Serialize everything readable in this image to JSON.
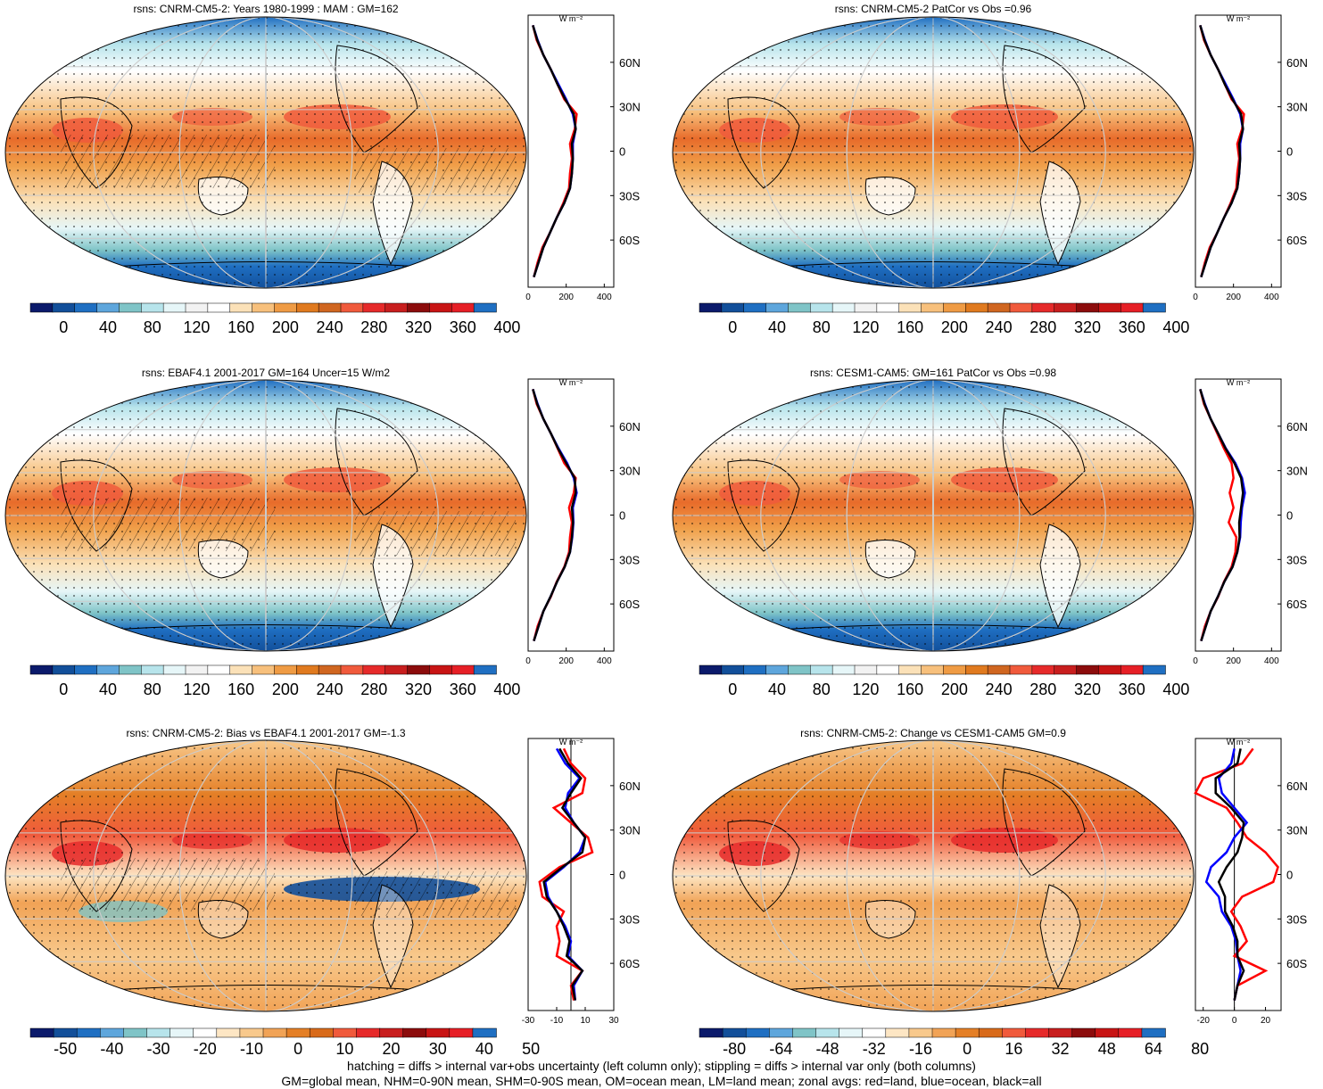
{
  "palette": {
    "abs": [
      "#0b1a6b",
      "#124f9a",
      "#1f6fc2",
      "#5ea6dc",
      "#7fc4c7",
      "#b7e4eb",
      "#e6f6f8",
      "#f2f2f2",
      "#ffffff",
      "#fbe1b8",
      "#f7c07c",
      "#ef9b44",
      "#e07a1f",
      "#d06620",
      "#f05a3c",
      "#e62a2a",
      "#c81e1e",
      "#8c0c0c",
      "#c81414",
      "#e61f26",
      "#1f6fc2"
    ],
    "diff": [
      "#0b1a6b",
      "#124f9a",
      "#1f6fc2",
      "#5ea6dc",
      "#7fc4c7",
      "#b7e4eb",
      "#e6f6f8",
      "#ffffff",
      "#fde6c4",
      "#f8c98c",
      "#f1a356",
      "#e47f26",
      "#d86a1a",
      "#f05a3c",
      "#e62a2a",
      "#c81e1e",
      "#8c0c0c",
      "#c81414",
      "#e61f26",
      "#1f6fc2"
    ]
  },
  "panels": [
    {
      "title": "rsns: CNRM-CM5-2: Years 1980-1999 : MAM : GM=162",
      "colorbar_ticks": [
        "0",
        "40",
        "80",
        "120",
        "160",
        "200",
        "240",
        "280",
        "320",
        "360",
        "400"
      ],
      "zonal_xticks": [
        "0",
        "200",
        "400"
      ],
      "zonal_unit": "W m⁻²"
    },
    {
      "title": "rsns: CNRM-CM5-2 PatCor vs Obs =0.96",
      "colorbar_ticks": [
        "0",
        "40",
        "80",
        "120",
        "160",
        "200",
        "240",
        "280",
        "320",
        "360",
        "400"
      ],
      "zonal_xticks": [
        "0",
        "200",
        "400"
      ],
      "zonal_unit": "W m⁻²"
    },
    {
      "title": "rsns: EBAF4.1 2001-2017 GM=164 Uncer=15 W/m2",
      "colorbar_ticks": [
        "0",
        "40",
        "80",
        "120",
        "160",
        "200",
        "240",
        "280",
        "320",
        "360",
        "400"
      ],
      "zonal_xticks": [
        "0",
        "200",
        "400"
      ],
      "zonal_unit": "W m⁻²"
    },
    {
      "title": "rsns: CESM1-CAM5: GM=161 PatCor vs Obs =0.98",
      "colorbar_ticks": [
        "0",
        "40",
        "80",
        "120",
        "160",
        "200",
        "240",
        "280",
        "320",
        "360",
        "400"
      ],
      "zonal_xticks": [
        "0",
        "200",
        "400"
      ],
      "zonal_unit": "W m⁻²"
    },
    {
      "title": "rsns: CNRM-CM5-2: Bias vs EBAF4.1 2001-2017 GM=-1.3",
      "colorbar_ticks": [
        "-50",
        "-40",
        "-30",
        "-20",
        "-10",
        "0",
        "10",
        "20",
        "30",
        "40",
        "50"
      ],
      "zonal_xticks": [
        "-30",
        "-10",
        "10",
        "30"
      ],
      "zonal_unit": "W m⁻²"
    },
    {
      "title": "rsns: CNRM-CM5-2: Change vs CESM1-CAM5 GM=0.9",
      "colorbar_ticks": [
        "-80",
        "-64",
        "-48",
        "-32",
        "-16",
        "0",
        "16",
        "32",
        "48",
        "64",
        "80"
      ],
      "zonal_xticks": [
        "-20",
        "0",
        "20"
      ],
      "zonal_unit": "W m⁻²"
    }
  ],
  "lat_ticks": [
    "60N",
    "30N",
    "0",
    "30S",
    "60S"
  ],
  "footer": {
    "line1": "hatching = diffs > internal var+obs uncertainty (left column only); stippling = diffs > internal var only (both columns)",
    "line2": "GM=global mean, NHM=0-90N mean, SHM=0-90S mean, OM=ocean mean, LM=land mean; zonal avgs: red=land, blue=ocean, black=all"
  },
  "chart_data": [
    {
      "type": "heatmap",
      "title": "rsns: CNRM-CM5-2: Years 1980-1999 : MAM : GM=162",
      "zlim": [
        0,
        400
      ],
      "zonal": {
        "lat": [
          -85,
          -75,
          -65,
          -55,
          -45,
          -35,
          -25,
          -15,
          -5,
          5,
          15,
          25,
          35,
          45,
          55,
          65,
          75,
          85
        ],
        "land": [
          30,
          50,
          75,
          115,
          150,
          185,
          215,
          220,
          230,
          220,
          245,
          255,
          190,
          155,
          120,
          80,
          45,
          25
        ],
        "ocean": [
          30,
          55,
          80,
          115,
          150,
          190,
          220,
          230,
          235,
          235,
          250,
          235,
          200,
          160,
          120,
          80,
          50,
          25
        ],
        "all": [
          30,
          55,
          80,
          115,
          150,
          190,
          220,
          230,
          235,
          230,
          250,
          240,
          195,
          155,
          120,
          80,
          48,
          25
        ]
      }
    },
    {
      "type": "heatmap",
      "title": "rsns: CNRM-CM5-2 PatCor vs Obs =0.96",
      "zlim": [
        0,
        400
      ],
      "zonal": {
        "lat": [
          -85,
          -75,
          -65,
          -55,
          -45,
          -35,
          -25,
          -15,
          -5,
          5,
          15,
          25,
          35,
          45,
          55,
          65,
          75,
          85
        ],
        "land": [
          30,
          50,
          75,
          115,
          150,
          185,
          215,
          220,
          230,
          220,
          245,
          255,
          190,
          155,
          120,
          80,
          45,
          25
        ],
        "ocean": [
          30,
          55,
          80,
          115,
          150,
          190,
          220,
          230,
          235,
          235,
          250,
          235,
          200,
          160,
          120,
          80,
          50,
          25
        ],
        "all": [
          30,
          55,
          80,
          115,
          150,
          190,
          220,
          230,
          235,
          230,
          250,
          240,
          195,
          155,
          120,
          80,
          48,
          25
        ]
      }
    },
    {
      "type": "heatmap",
      "title": "rsns: EBAF4.1 2001-2017 GM=164 Uncer=15 W/m2",
      "zlim": [
        0,
        400
      ],
      "zonal": {
        "lat": [
          -85,
          -75,
          -65,
          -55,
          -45,
          -35,
          -25,
          -15,
          -5,
          5,
          15,
          25,
          35,
          45,
          55,
          65,
          75,
          85
        ],
        "land": [
          30,
          50,
          80,
          120,
          150,
          190,
          215,
          220,
          230,
          215,
          240,
          250,
          190,
          155,
          120,
          80,
          45,
          25
        ],
        "ocean": [
          30,
          55,
          80,
          118,
          152,
          192,
          220,
          232,
          238,
          235,
          255,
          240,
          205,
          160,
          120,
          80,
          50,
          25
        ],
        "all": [
          30,
          55,
          80,
          118,
          152,
          192,
          220,
          230,
          236,
          230,
          250,
          245,
          200,
          157,
          120,
          80,
          48,
          25
        ]
      }
    },
    {
      "type": "heatmap",
      "title": "rsns: CESM1-CAM5: GM=161 PatCor vs Obs =0.98",
      "zlim": [
        0,
        400
      ],
      "zonal": {
        "lat": [
          -85,
          -75,
          -65,
          -55,
          -45,
          -35,
          -25,
          -15,
          -5,
          5,
          15,
          25,
          35,
          45,
          55,
          65,
          75,
          85
        ],
        "land": [
          30,
          50,
          80,
          120,
          150,
          190,
          210,
          215,
          175,
          200,
          180,
          200,
          190,
          150,
          115,
          80,
          45,
          25
        ],
        "ocean": [
          30,
          55,
          80,
          118,
          152,
          195,
          220,
          235,
          238,
          245,
          260,
          245,
          210,
          160,
          120,
          80,
          50,
          25
        ],
        "all": [
          30,
          55,
          80,
          118,
          152,
          195,
          220,
          232,
          230,
          240,
          250,
          240,
          205,
          158,
          120,
          80,
          48,
          25
        ]
      }
    },
    {
      "type": "heatmap",
      "title": "rsns: CNRM-CM5-2: Bias vs EBAF4.1 2001-2017 GM=-1.3",
      "zlim": [
        -50,
        50
      ],
      "zonal": {
        "lat": [
          -85,
          -75,
          -65,
          -55,
          -45,
          -35,
          -25,
          -15,
          -5,
          5,
          15,
          25,
          35,
          45,
          55,
          65,
          75,
          85
        ],
        "land": [
          2,
          0,
          8,
          -10,
          -8,
          -10,
          -5,
          -20,
          -22,
          -8,
          15,
          12,
          0,
          -12,
          8,
          10,
          0,
          -5
        ],
        "ocean": [
          3,
          2,
          8,
          -2,
          0,
          -4,
          -10,
          -16,
          -18,
          -5,
          6,
          10,
          2,
          -4,
          -2,
          6,
          -4,
          -10
        ],
        "all": [
          3,
          1,
          8,
          -3,
          -1,
          -5,
          -10,
          -17,
          -19,
          -6,
          8,
          10,
          2,
          -6,
          0,
          7,
          -2,
          -8
        ]
      }
    },
    {
      "type": "heatmap",
      "title": "rsns: CNRM-CM5-2: Change vs CESM1-CAM5 GM=0.9",
      "zlim": [
        -80,
        80
      ],
      "zonal": {
        "lat": [
          -85,
          -75,
          -65,
          -55,
          -45,
          -35,
          -25,
          -15,
          -5,
          5,
          15,
          25,
          35,
          45,
          55,
          65,
          75,
          85
        ],
        "land": [
          0,
          2,
          20,
          0,
          8,
          4,
          -2,
          5,
          25,
          28,
          20,
          8,
          2,
          -5,
          -25,
          -20,
          5,
          12
        ],
        "ocean": [
          0,
          2,
          4,
          2,
          1,
          -2,
          -8,
          -10,
          -18,
          -15,
          -5,
          0,
          8,
          0,
          -8,
          -10,
          -2,
          0
        ],
        "all": [
          0,
          2,
          6,
          2,
          2,
          -1,
          -6,
          -6,
          -10,
          -5,
          2,
          5,
          6,
          -2,
          -12,
          -12,
          2,
          4
        ]
      }
    }
  ]
}
